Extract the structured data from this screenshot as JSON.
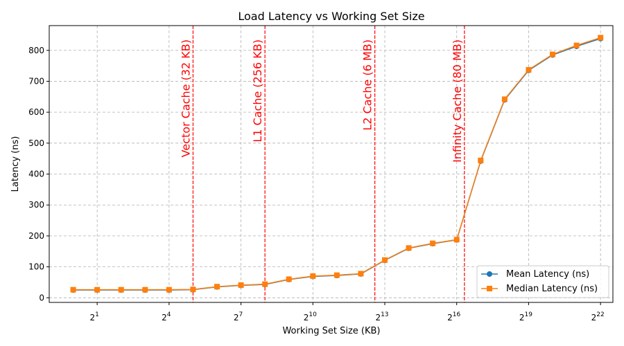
{
  "chart_data": {
    "type": "line",
    "title": "Load Latency vs Working Set Size",
    "xlabel": "Working Set Size (KB)",
    "ylabel": "Latency (ns)",
    "x_scale": "log2",
    "x": [
      1,
      2,
      4,
      8,
      16,
      32,
      64,
      128,
      256,
      512,
      1024,
      2048,
      4096,
      8192,
      16384,
      32768,
      65536,
      131072,
      262144,
      524288,
      1048576,
      2097152,
      4194304
    ],
    "xticks": [
      2,
      16,
      128,
      1024,
      8192,
      65536,
      524288,
      4194304
    ],
    "xtick_base": "2",
    "xtick_exponents": [
      "1",
      "4",
      "7",
      "10",
      "13",
      "16",
      "19",
      "22"
    ],
    "xlim": [
      0.5,
      6000000
    ],
    "ylim": [
      -15,
      880
    ],
    "yticks": [
      0,
      100,
      200,
      300,
      400,
      500,
      600,
      700,
      800
    ],
    "grid": true,
    "legend_position": "bottom-right",
    "series": [
      {
        "name": "Mean Latency (ns)",
        "color": "#1f77b4",
        "marker": "circle",
        "values": [
          25,
          25,
          25,
          25,
          25,
          26,
          35,
          40,
          43,
          59,
          69,
          72,
          77,
          121,
          160,
          175,
          187,
          442,
          640,
          735,
          785,
          813,
          838
        ]
      },
      {
        "name": "Median Latency (ns)",
        "color": "#ff7f0e",
        "marker": "square",
        "values": [
          26,
          26,
          26,
          26,
          26,
          27,
          36,
          41,
          44,
          60,
          70,
          73,
          78,
          122,
          161,
          176,
          188,
          444,
          642,
          737,
          787,
          816,
          841
        ]
      }
    ],
    "vlines": [
      {
        "x": 32,
        "label": "Vector Cache (32 KB)",
        "color": "#ff0000"
      },
      {
        "x": 256,
        "label": "L1 Cache (256 KB)",
        "color": "#ff0000"
      },
      {
        "x": 6144,
        "label": "L2 Cache (6 MB)",
        "color": "#ff0000"
      },
      {
        "x": 81920,
        "label": "Infinity Cache (80 MB)",
        "color": "#ff0000"
      }
    ]
  }
}
